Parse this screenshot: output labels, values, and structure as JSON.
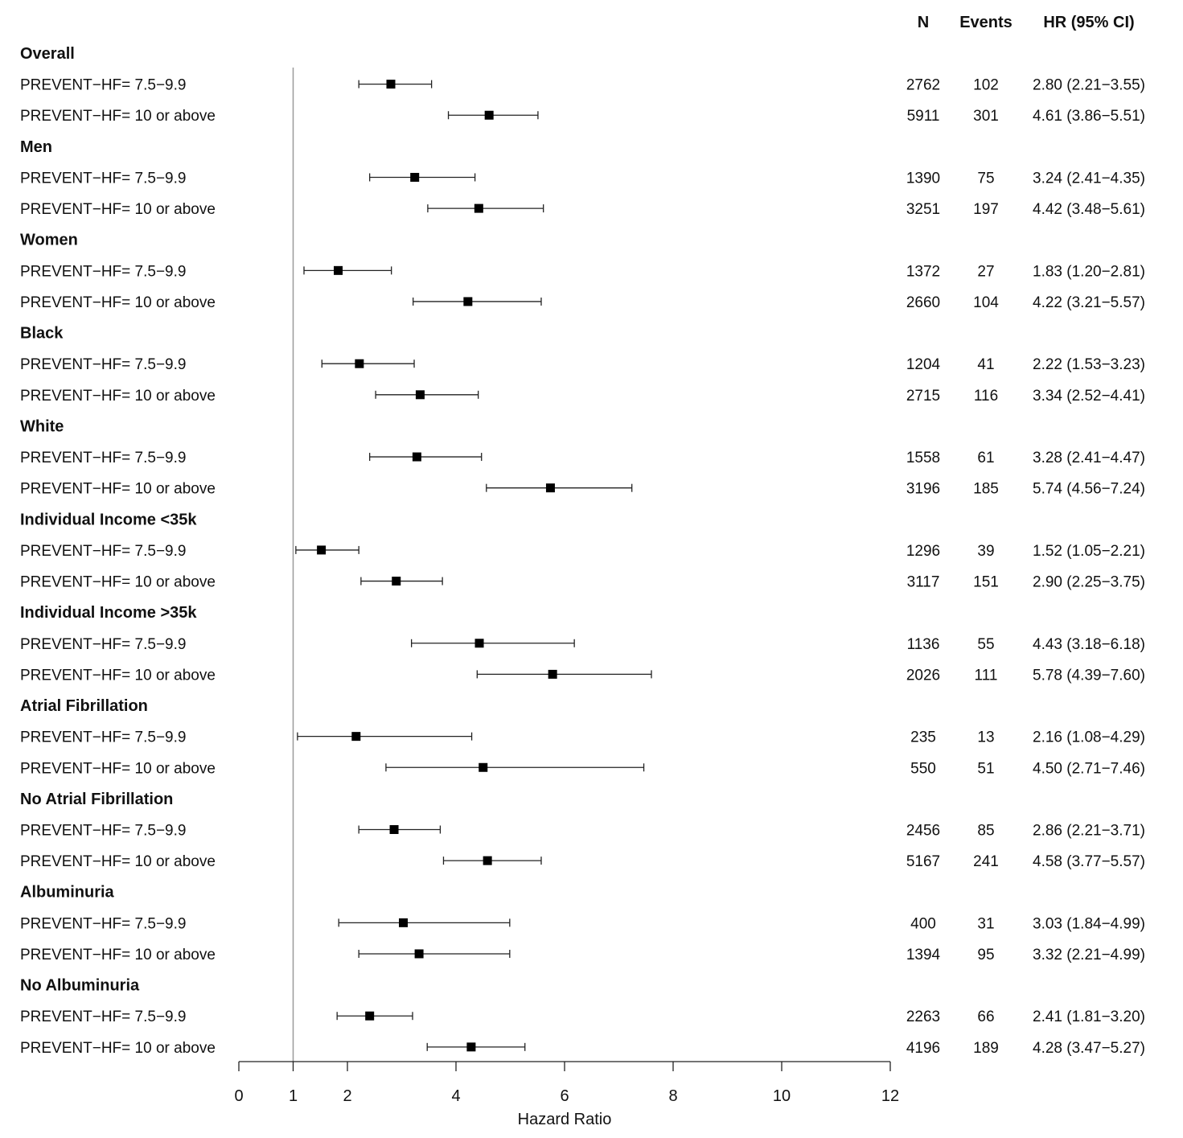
{
  "chart_data": {
    "type": "forest",
    "xlabel": "Hazard Ratio",
    "xlim": [
      0,
      12
    ],
    "xticks": [
      0,
      1,
      2,
      4,
      6,
      8,
      10,
      12
    ],
    "reference_line": 1,
    "columns": {
      "n": "N",
      "events": "Events",
      "hr": "HR (95% CI)"
    },
    "groups": [
      {
        "name": "Overall",
        "rows": [
          {
            "label": "PREVENT−HF= 7.5−9.9",
            "n": "2762",
            "events": "102",
            "hr": 2.8,
            "lo": 2.21,
            "hi": 3.55,
            "hr_text": "2.80 (2.21−3.55)"
          },
          {
            "label": "PREVENT−HF= 10 or above",
            "n": "5911",
            "events": "301",
            "hr": 4.61,
            "lo": 3.86,
            "hi": 5.51,
            "hr_text": "4.61 (3.86−5.51)"
          }
        ]
      },
      {
        "name": "Men",
        "rows": [
          {
            "label": "PREVENT−HF= 7.5−9.9",
            "n": "1390",
            "events": "75",
            "hr": 3.24,
            "lo": 2.41,
            "hi": 4.35,
            "hr_text": "3.24 (2.41−4.35)"
          },
          {
            "label": "PREVENT−HF= 10 or above",
            "n": "3251",
            "events": "197",
            "hr": 4.42,
            "lo": 3.48,
            "hi": 5.61,
            "hr_text": "4.42 (3.48−5.61)"
          }
        ]
      },
      {
        "name": "Women",
        "rows": [
          {
            "label": "PREVENT−HF= 7.5−9.9",
            "n": "1372",
            "events": "27",
            "hr": 1.83,
            "lo": 1.2,
            "hi": 2.81,
            "hr_text": "1.83 (1.20−2.81)"
          },
          {
            "label": "PREVENT−HF= 10 or above",
            "n": "2660",
            "events": "104",
            "hr": 4.22,
            "lo": 3.21,
            "hi": 5.57,
            "hr_text": "4.22 (3.21−5.57)"
          }
        ]
      },
      {
        "name": "Black",
        "rows": [
          {
            "label": "PREVENT−HF= 7.5−9.9",
            "n": "1204",
            "events": "41",
            "hr": 2.22,
            "lo": 1.53,
            "hi": 3.23,
            "hr_text": "2.22 (1.53−3.23)"
          },
          {
            "label": "PREVENT−HF= 10 or above",
            "n": "2715",
            "events": "116",
            "hr": 3.34,
            "lo": 2.52,
            "hi": 4.41,
            "hr_text": "3.34 (2.52−4.41)"
          }
        ]
      },
      {
        "name": "White",
        "rows": [
          {
            "label": "PREVENT−HF= 7.5−9.9",
            "n": "1558",
            "events": "61",
            "hr": 3.28,
            "lo": 2.41,
            "hi": 4.47,
            "hr_text": "3.28 (2.41−4.47)"
          },
          {
            "label": "PREVENT−HF= 10 or above",
            "n": "3196",
            "events": "185",
            "hr": 5.74,
            "lo": 4.56,
            "hi": 7.24,
            "hr_text": "5.74 (4.56−7.24)"
          }
        ]
      },
      {
        "name": "Individual Income <35k",
        "rows": [
          {
            "label": "PREVENT−HF= 7.5−9.9",
            "n": "1296",
            "events": "39",
            "hr": 1.52,
            "lo": 1.05,
            "hi": 2.21,
            "hr_text": "1.52 (1.05−2.21)"
          },
          {
            "label": "PREVENT−HF= 10 or above",
            "n": "3117",
            "events": "151",
            "hr": 2.9,
            "lo": 2.25,
            "hi": 3.75,
            "hr_text": "2.90 (2.25−3.75)"
          }
        ]
      },
      {
        "name": "Individual Income >35k",
        "rows": [
          {
            "label": "PREVENT−HF= 7.5−9.9",
            "n": "1136",
            "events": "55",
            "hr": 4.43,
            "lo": 3.18,
            "hi": 6.18,
            "hr_text": "4.43 (3.18−6.18)"
          },
          {
            "label": "PREVENT−HF= 10 or above",
            "n": "2026",
            "events": "111",
            "hr": 5.78,
            "lo": 4.39,
            "hi": 7.6,
            "hr_text": "5.78 (4.39−7.60)"
          }
        ]
      },
      {
        "name": "Atrial Fibrillation",
        "rows": [
          {
            "label": "PREVENT−HF= 7.5−9.9",
            "n": "235",
            "events": "13",
            "hr": 2.16,
            "lo": 1.08,
            "hi": 4.29,
            "hr_text": "2.16 (1.08−4.29)"
          },
          {
            "label": "PREVENT−HF= 10 or above",
            "n": "550",
            "events": "51",
            "hr": 4.5,
            "lo": 2.71,
            "hi": 7.46,
            "hr_text": "4.50 (2.71−7.46)"
          }
        ]
      },
      {
        "name": "No Atrial Fibrillation",
        "rows": [
          {
            "label": "PREVENT−HF= 7.5−9.9",
            "n": "2456",
            "events": "85",
            "hr": 2.86,
            "lo": 2.21,
            "hi": 3.71,
            "hr_text": "2.86 (2.21−3.71)"
          },
          {
            "label": "PREVENT−HF= 10 or above",
            "n": "5167",
            "events": "241",
            "hr": 4.58,
            "lo": 3.77,
            "hi": 5.57,
            "hr_text": "4.58 (3.77−5.57)"
          }
        ]
      },
      {
        "name": "Albuminuria",
        "rows": [
          {
            "label": "PREVENT−HF= 7.5−9.9",
            "n": "400",
            "events": "31",
            "hr": 3.03,
            "lo": 1.84,
            "hi": 4.99,
            "hr_text": "3.03 (1.84−4.99)"
          },
          {
            "label": "PREVENT−HF= 10 or above",
            "n": "1394",
            "events": "95",
            "hr": 3.32,
            "lo": 2.21,
            "hi": 4.99,
            "hr_text": "3.32 (2.21−4.99)"
          }
        ]
      },
      {
        "name": "No Albuminuria",
        "rows": [
          {
            "label": "PREVENT−HF= 7.5−9.9",
            "n": "2263",
            "events": "66",
            "hr": 2.41,
            "lo": 1.81,
            "hi": 3.2,
            "hr_text": "2.41 (1.81−3.20)"
          },
          {
            "label": "PREVENT−HF= 10 or above",
            "n": "4196",
            "events": "189",
            "hr": 4.28,
            "lo": 3.47,
            "hi": 5.27,
            "hr_text": "4.28 (3.47−5.27)"
          }
        ]
      }
    ]
  }
}
